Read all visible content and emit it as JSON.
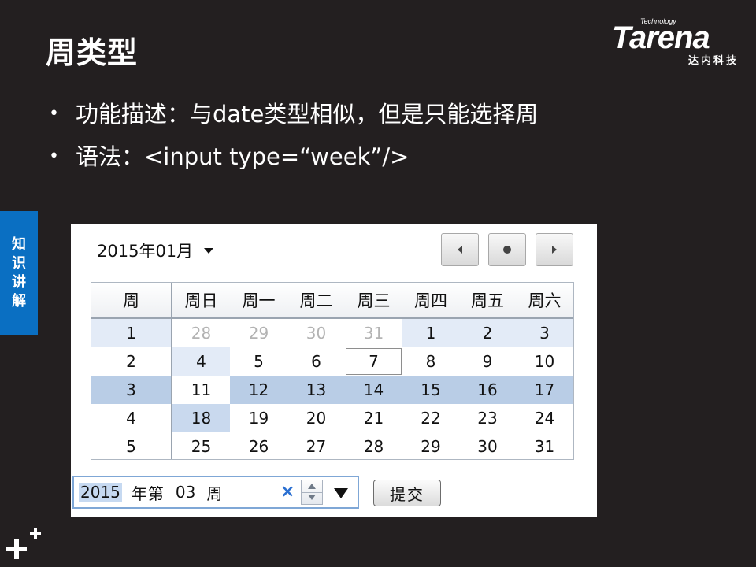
{
  "slide": {
    "title": "周类型",
    "bullets": [
      "功能描述：与date类型相似，但是只能选择周",
      "语法：<input type=“week”/>"
    ],
    "side_tab": [
      "知",
      "识",
      "讲",
      "解"
    ],
    "logo": {
      "tagline": "Technology",
      "wordmark": "Tarena",
      "cn": "达内科技"
    }
  },
  "picker": {
    "month_label": "2015年01月",
    "nav_icons": [
      "prev-month-icon",
      "today-icon",
      "next-month-icon"
    ],
    "header": [
      "周",
      "周日",
      "周一",
      "周二",
      "周三",
      "周四",
      "周五",
      "周六"
    ],
    "weeks": [
      {
        "week": "1",
        "days": [
          "28",
          "29",
          "30",
          "31",
          "1",
          "2",
          "3"
        ]
      },
      {
        "week": "2",
        "days": [
          "4",
          "5",
          "6",
          "7",
          "8",
          "9",
          "10"
        ]
      },
      {
        "week": "3",
        "days": [
          "11",
          "12",
          "13",
          "14",
          "15",
          "16",
          "17"
        ]
      },
      {
        "week": "4",
        "days": [
          "18",
          "19",
          "20",
          "21",
          "22",
          "23",
          "24"
        ]
      },
      {
        "week": "5",
        "days": [
          "25",
          "26",
          "27",
          "28",
          "29",
          "30",
          "31"
        ]
      }
    ],
    "muted_days": [
      [
        0,
        0
      ],
      [
        0,
        1
      ],
      [
        0,
        2
      ],
      [
        0,
        3
      ]
    ],
    "today_cell": [
      1,
      3
    ],
    "selected_week_index": 2,
    "colors": {
      "selected_week": "#b9cde6",
      "hover_week": "#e3ebf7",
      "hover_cell": "#c9d9ee",
      "accent": "#2a6fd1"
    }
  },
  "week_input": {
    "year": "2015",
    "text": "年第",
    "week": "03",
    "suffix": "周",
    "clear_icon": "×"
  },
  "submit_label": "提交"
}
